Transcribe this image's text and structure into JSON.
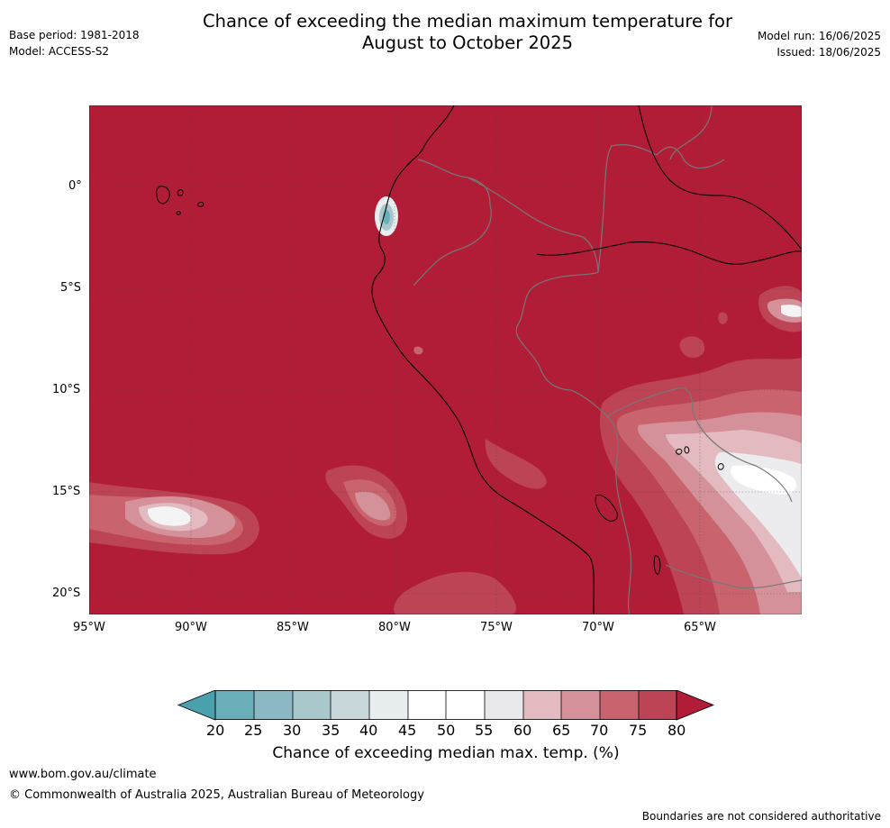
{
  "header": {
    "title_line1": "Chance of exceeding the median maximum temperature for",
    "title_line2": "August to October 2025",
    "base_period": "Base period: 1981-2018",
    "model": "Model: ACCESS-S2",
    "model_run": "Model run: 16/06/2025",
    "issued": "Issued: 18/06/2025"
  },
  "map": {
    "lat_ticks": [
      "0°",
      "5°S",
      "10°S",
      "15°S",
      "20°S"
    ],
    "lon_ticks": [
      "95°W",
      "90°W",
      "85°W",
      "80°W",
      "75°W",
      "70°W",
      "65°W"
    ],
    "background_color": "#b11c37"
  },
  "colorbar": {
    "label": "Chance of exceeding median max. temp. (%)",
    "ticks": [
      "20",
      "25",
      "30",
      "35",
      "40",
      "45",
      "50",
      "55",
      "60",
      "65",
      "70",
      "75",
      "80"
    ],
    "colors": [
      "#4aa1ad",
      "#6aaeba",
      "#8ab9c3",
      "#a9c8cc",
      "#c8d8da",
      "#e8eef0",
      "#ffffff",
      "#ffffff",
      "#e8e8ea",
      "#e3bac0",
      "#d5919a",
      "#c9646f",
      "#bd4455",
      "#b11c37"
    ]
  },
  "footer": {
    "website": "www.bom.gov.au/climate",
    "copyright": "© Commonwealth of Australia 2025, Australian Bureau of Meteorology",
    "disclaimer": "Boundaries are not considered authoritative"
  }
}
